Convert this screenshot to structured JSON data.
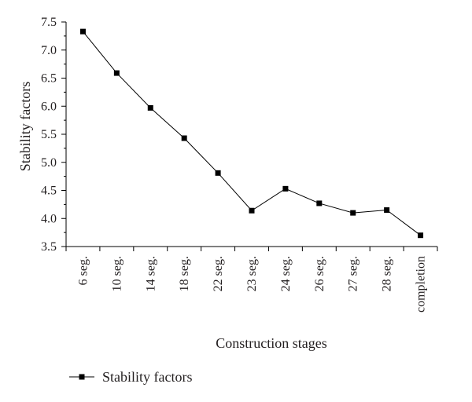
{
  "chart_data": {
    "type": "line",
    "categories": [
      "6 seg.",
      "10 seg.",
      "14 seg.",
      "18 seg.",
      "22 seg.",
      "23 seg.",
      "24 seg.",
      "26 seg.",
      "27 seg.",
      "28 seg.",
      "completion"
    ],
    "series": [
      {
        "name": "Stability factors",
        "values": [
          7.33,
          6.59,
          5.97,
          5.43,
          4.81,
          4.14,
          4.53,
          4.27,
          4.1,
          4.15,
          3.7
        ],
        "color": "#000000",
        "marker": "square"
      }
    ],
    "xlabel": "Construction stages",
    "ylabel": "Stability factors",
    "ylim": [
      3.5,
      7.5
    ],
    "yticks": [
      3.5,
      4.0,
      4.5,
      5.0,
      5.5,
      6.0,
      6.5,
      7.0,
      7.5
    ],
    "grid": false,
    "legend": "bottom-left"
  }
}
